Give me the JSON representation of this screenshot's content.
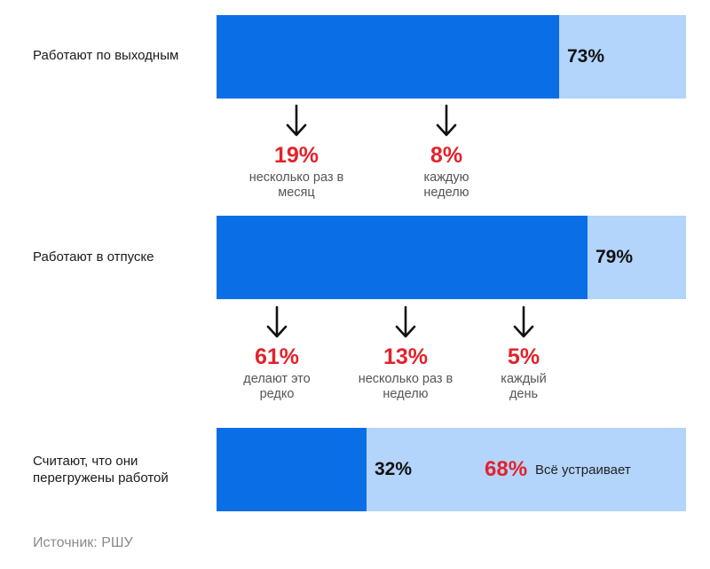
{
  "chart_data": {
    "type": "bar",
    "orientation": "horizontal",
    "stacked": true,
    "xlim": [
      0,
      100
    ],
    "colors": {
      "fill": "#0a6fe6",
      "remainder": "#b3d4fb",
      "accent": "#e3222b"
    },
    "rows": [
      {
        "label": "Работают по выходным",
        "value": 73,
        "value_label": "73%",
        "breakdown": [
          {
            "value": 19,
            "value_label": "19%",
            "label": "несколько раз в месяц"
          },
          {
            "value": 8,
            "value_label": "8%",
            "label": "каждую неделю"
          }
        ]
      },
      {
        "label": "Работают в отпуске",
        "value": 79,
        "value_label": "79%",
        "breakdown": [
          {
            "value": 61,
            "value_label": "61%",
            "label": "делают это редко"
          },
          {
            "value": 13,
            "value_label": "13%",
            "label": "несколько раз в неделю"
          },
          {
            "value": 5,
            "value_label": "5%",
            "label": "каждый день"
          }
        ]
      },
      {
        "label": "Считают, что они перегружены работой",
        "value": 32,
        "value_label": "32%",
        "rest_value": 68,
        "rest_value_label": "68%",
        "rest_label": "Всё устраивает"
      }
    ]
  },
  "source": "Источник: РШУ"
}
